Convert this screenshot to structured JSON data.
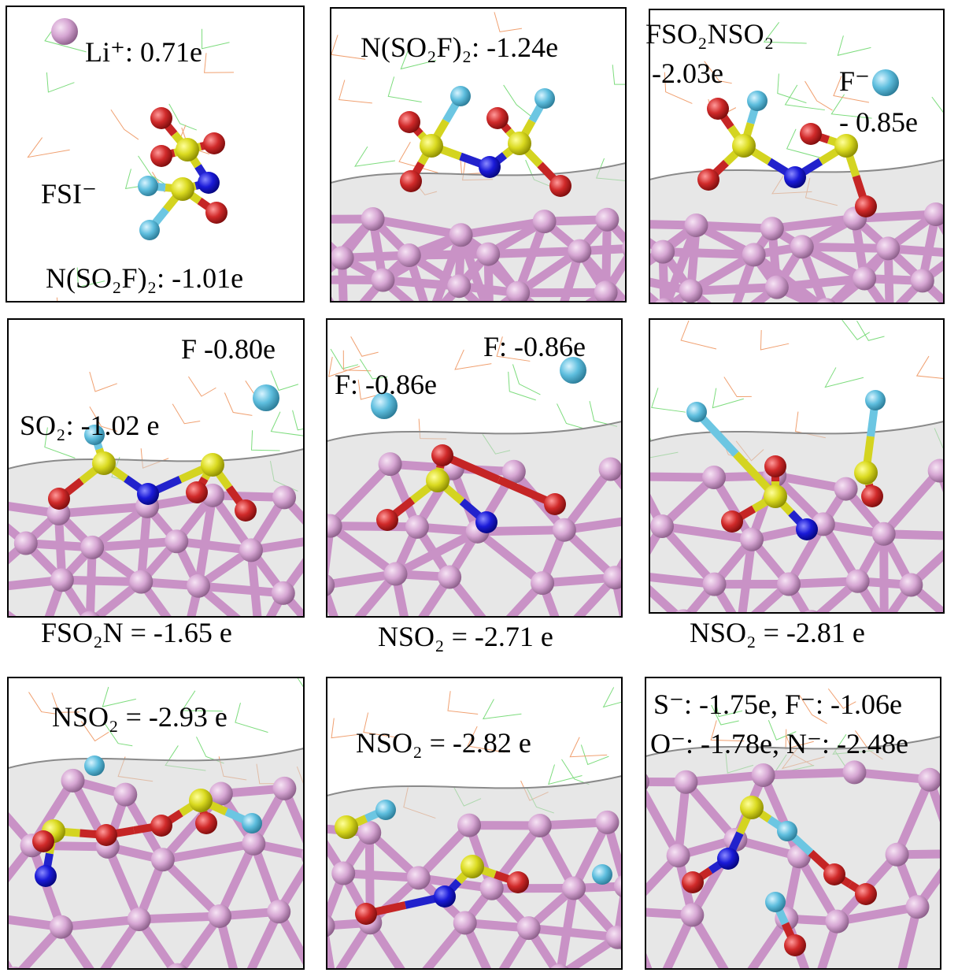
{
  "panels": [
    {
      "labels": [
        "Li⁺: 0.71e",
        "FSI⁻",
        "N(SO₂F)₂: -1.01e"
      ]
    },
    {
      "labels": [
        "N(SO₂F)₂:  -1.24e"
      ]
    },
    {
      "labels": [
        "FSO₂NSO₂",
        "-2.03e",
        "F⁻",
        "- 0.85e"
      ]
    },
    {
      "labels": [
        "F -0.80e",
        "SO₂: -1.02 e"
      ],
      "caption": "FSO₂N = -1.65 e"
    },
    {
      "labels": [
        "F: -0.86e",
        "F: -0.86e"
      ],
      "caption": "NSO₂ = -2.71 e"
    },
    {
      "caption": "NSO₂ =  -2.81 e"
    },
    {
      "labels": [
        "NSO₂ =  -2.93 e"
      ]
    },
    {
      "labels": [
        "NSO₂ =  -2.82 e"
      ]
    },
    {
      "labels": [
        "S⁻: -1.75e, F⁻: -1.06e",
        "O⁻: -1.78e, N⁻: -2.48e"
      ]
    }
  ]
}
